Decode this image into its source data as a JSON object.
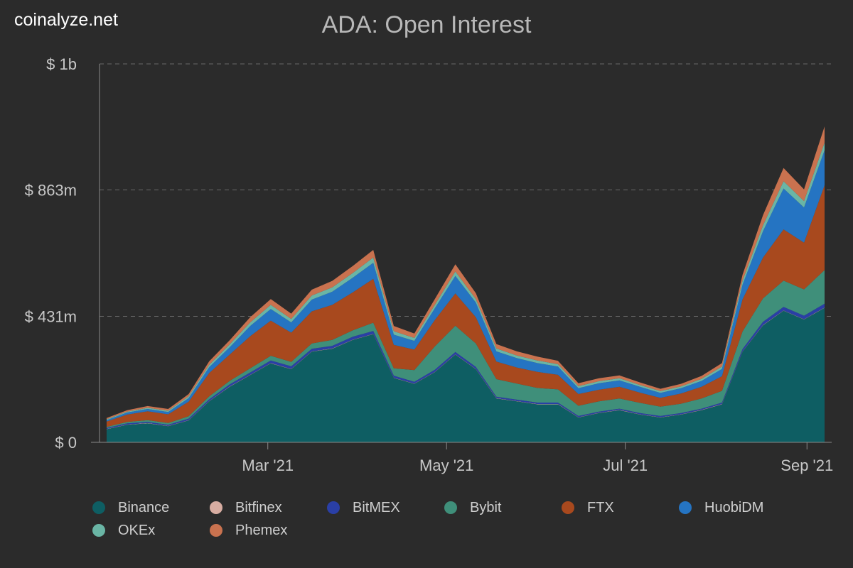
{
  "watermark": "coinalyze.net",
  "chart_data": {
    "type": "area",
    "stacked": true,
    "title": "ADA: Open Interest",
    "y_ticks": [
      "$ 0",
      "$ 431m",
      "$ 863m",
      "$ 1b"
    ],
    "y_tick_values": [
      0,
      431,
      863,
      1294
    ],
    "ylim": [
      0,
      1294
    ],
    "y_unit": "millions USD",
    "x_ticks": [
      "Mar '21",
      "May '21",
      "Jul '21",
      "Sep '21"
    ],
    "x_tick_dates": [
      "2021-03-01",
      "2021-05-01",
      "2021-07-01",
      "2021-09-01"
    ],
    "x_range": [
      "2021-01-05",
      "2021-09-07"
    ],
    "grid": true,
    "legend_position": "bottom",
    "x": [
      "2021-01-05",
      "2021-01-12",
      "2021-01-19",
      "2021-01-26",
      "2021-02-02",
      "2021-02-09",
      "2021-02-16",
      "2021-02-23",
      "2021-03-02",
      "2021-03-09",
      "2021-03-16",
      "2021-03-23",
      "2021-03-30",
      "2021-04-06",
      "2021-04-13",
      "2021-04-20",
      "2021-04-27",
      "2021-05-04",
      "2021-05-11",
      "2021-05-18",
      "2021-05-25",
      "2021-06-01",
      "2021-06-08",
      "2021-06-15",
      "2021-06-22",
      "2021-06-29",
      "2021-07-06",
      "2021-07-13",
      "2021-07-20",
      "2021-07-27",
      "2021-08-03",
      "2021-08-10",
      "2021-08-17",
      "2021-08-24",
      "2021-08-31",
      "2021-09-07"
    ],
    "series": [
      {
        "name": "Binance",
        "color": "#0e5e63",
        "values": [
          45,
          60,
          65,
          55,
          75,
          140,
          190,
          230,
          270,
          250,
          310,
          320,
          350,
          370,
          220,
          200,
          240,
          300,
          250,
          150,
          140,
          130,
          130,
          85,
          100,
          110,
          95,
          85,
          95,
          110,
          130,
          310,
          400,
          450,
          420,
          460
        ]
      },
      {
        "name": "Bitfinex",
        "color": "#d8ada2",
        "values": [
          1,
          1,
          1,
          1,
          1,
          1,
          1,
          1,
          1,
          1,
          1,
          1,
          1,
          1,
          1,
          1,
          1,
          1,
          1,
          1,
          1,
          1,
          1,
          1,
          1,
          1,
          1,
          1,
          1,
          1,
          1,
          1,
          1,
          1,
          1,
          1
        ]
      },
      {
        "name": "BitMEX",
        "color": "#2a3fa6",
        "values": [
          3,
          4,
          4,
          4,
          5,
          6,
          7,
          8,
          9,
          9,
          9,
          9,
          10,
          10,
          7,
          6,
          7,
          8,
          7,
          5,
          5,
          5,
          5,
          4,
          4,
          4,
          4,
          4,
          4,
          4,
          5,
          8,
          11,
          12,
          12,
          13
        ]
      },
      {
        "name": "Bybit",
        "color": "#3f8f7a",
        "values": [
          4,
          5,
          6,
          6,
          8,
          10,
          12,
          14,
          16,
          15,
          18,
          20,
          22,
          28,
          25,
          40,
          80,
          90,
          80,
          60,
          55,
          50,
          45,
          35,
          35,
          35,
          35,
          32,
          32,
          35,
          40,
          60,
          80,
          90,
          90,
          115
        ]
      },
      {
        "name": "FTX",
        "color": "#a8491e",
        "values": [
          18,
          25,
          30,
          30,
          50,
          80,
          90,
          110,
          120,
          100,
          110,
          120,
          130,
          150,
          80,
          70,
          90,
          110,
          90,
          60,
          55,
          55,
          50,
          40,
          40,
          40,
          35,
          30,
          35,
          40,
          50,
          110,
          140,
          175,
          160,
          290
        ]
      },
      {
        "name": "HuobiDM",
        "color": "#2574c2",
        "values": [
          5,
          7,
          8,
          8,
          12,
          20,
          25,
          35,
          40,
          35,
          40,
          45,
          50,
          55,
          35,
          30,
          40,
          60,
          50,
          35,
          32,
          30,
          28,
          20,
          22,
          22,
          20,
          17,
          18,
          20,
          25,
          50,
          90,
          140,
          120,
          120
        ]
      },
      {
        "name": "OKEx",
        "color": "#6ab5a5",
        "values": [
          3,
          3,
          4,
          4,
          6,
          8,
          10,
          12,
          14,
          12,
          14,
          15,
          16,
          18,
          12,
          10,
          12,
          15,
          12,
          10,
          9,
          9,
          8,
          7,
          7,
          7,
          6,
          6,
          6,
          7,
          8,
          14,
          20,
          25,
          22,
          26
        ]
      },
      {
        "name": "Phemex",
        "color": "#c9724f",
        "values": [
          4,
          5,
          6,
          6,
          8,
          12,
          14,
          18,
          20,
          18,
          20,
          22,
          24,
          26,
          18,
          15,
          20,
          25,
          20,
          15,
          14,
          13,
          12,
          10,
          10,
          10,
          9,
          8,
          9,
          10,
          12,
          20,
          35,
          45,
          40,
          55
        ]
      }
    ]
  }
}
